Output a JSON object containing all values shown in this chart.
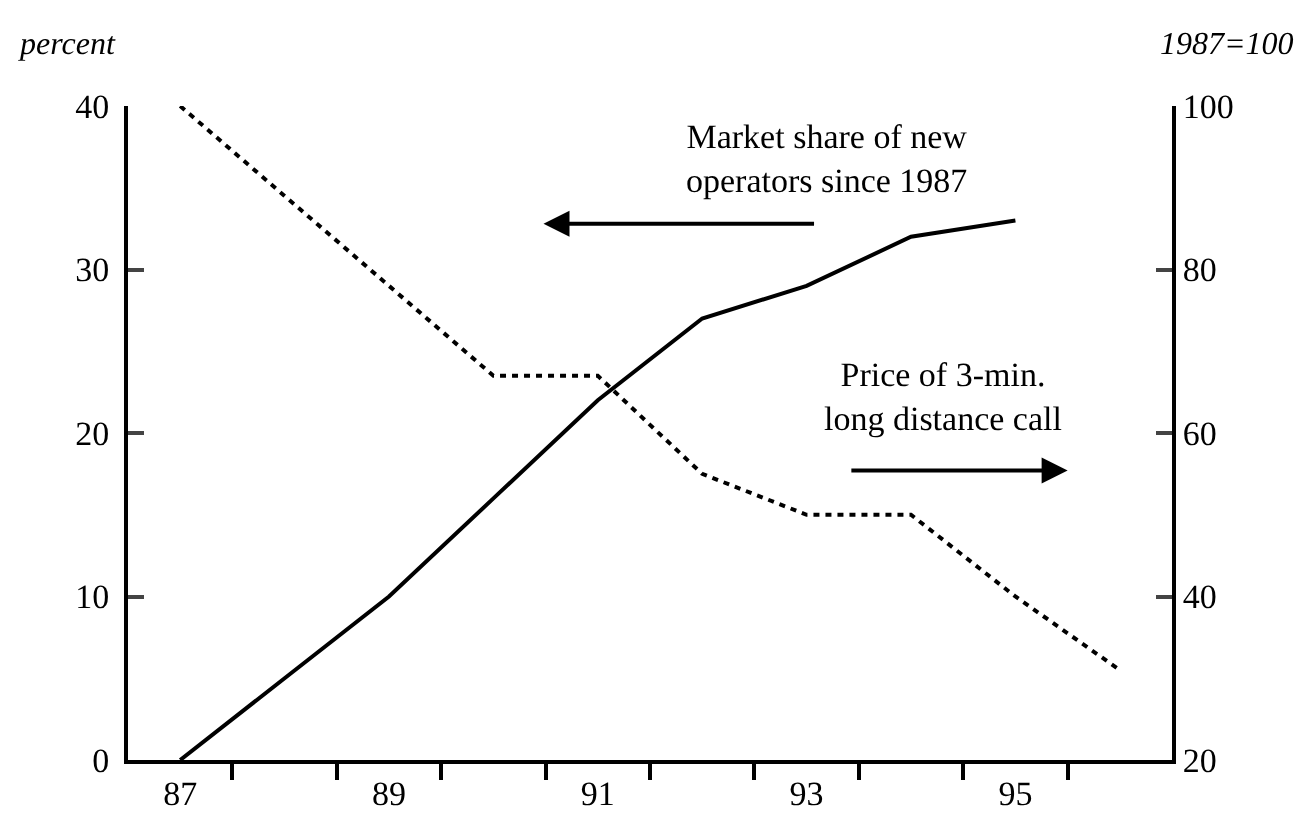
{
  "chart_data": {
    "type": "line",
    "ylabel": "percent",
    "y2label": "1987=100",
    "series": [
      {
        "name": "Market share of new operators since 1987",
        "color": "#000000",
        "line_style": "solid",
        "x": [
          87,
          88,
          89,
          90,
          91,
          92,
          93,
          94,
          95
        ],
        "values": [
          0,
          5,
          10,
          16,
          22,
          27,
          29,
          32,
          33
        ]
      },
      {
        "name": "Price of 3-min. long distance call",
        "color": "#000000",
        "line_style": "dotted",
        "axis": "y2",
        "x": [
          87,
          88,
          89,
          90,
          91,
          92,
          93,
          94,
          95,
          96
        ],
        "values": [
          100,
          89,
          78,
          67,
          67,
          55,
          50,
          50,
          40,
          31
        ]
      }
    ],
    "xlim": [
      86.5,
      96.5
    ],
    "xticks": [
      87,
      {
        "value": 87.5,
        "label": null
      },
      {
        "value": 88.5,
        "label": null
      },
      89,
      {
        "value": 89.5,
        "label": null
      },
      {
        "value": 90.5,
        "label": null
      },
      91,
      {
        "value": 91.5,
        "label": null
      },
      {
        "value": 92.5,
        "label": null
      },
      93,
      {
        "value": 93.5,
        "label": null
      },
      {
        "value": 94.5,
        "label": null
      },
      95,
      {
        "value": 95.5,
        "label": null
      }
    ],
    "ylim": [
      0,
      40
    ],
    "yticks": [
      0,
      10,
      20,
      30,
      40
    ],
    "y2lim": [
      20,
      100
    ],
    "y2ticks": [
      20,
      40,
      60,
      80,
      100
    ],
    "grid": false,
    "legend": false,
    "marker": "none"
  }
}
